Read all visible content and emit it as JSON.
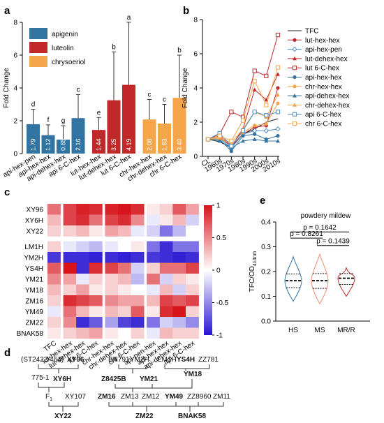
{
  "panel_labels": {
    "a": "a",
    "b": "b",
    "c": "c",
    "d": "d",
    "e": "e"
  },
  "chart_data": [
    {
      "panel": "a",
      "type": "bar",
      "ylabel": "Fold Change",
      "ylim": [
        0,
        8
      ],
      "yticks": [
        "0",
        "2",
        "4",
        "6",
        "8"
      ],
      "legend": {
        "position": "top-left",
        "entries": [
          {
            "name": "apigenin",
            "color": "#3274A1"
          },
          {
            "name": "luteolin",
            "color": "#C0282A"
          },
          {
            "name": "chrysoeriol",
            "color": "#F5A54A"
          }
        ]
      },
      "categories": [
        "api-hex-pen",
        "api-hex-hex",
        "api-dehex-hex",
        "api 6-C-hex",
        "lut-hex-hex",
        "lut-dehex-hex",
        "lut 6-C-hex",
        "chr-hex-hex",
        "chr-dehex-hex",
        "chr 6-C-hex"
      ],
      "values": [
        1.79,
        1.12,
        0.85,
        2.16,
        1.44,
        3.25,
        4.19,
        2.08,
        1.83,
        3.4
      ],
      "value_labels": [
        "1.79",
        "1.12",
        "0.85",
        "2.16",
        "1.44",
        "3.25",
        "4.19",
        "2.08",
        "1.83",
        "3.40"
      ],
      "error_upper": [
        2.7,
        1.75,
        1.7,
        3.6,
        2.2,
        6.2,
        8.0,
        3.3,
        3.0,
        6.0
      ],
      "letters": [
        "d",
        "f",
        "g",
        "c",
        "e",
        "b",
        "a",
        "c",
        "c",
        "b"
      ],
      "groups": [
        "apigenin",
        "apigenin",
        "apigenin",
        "apigenin",
        "luteolin",
        "luteolin",
        "luteolin",
        "chrysoeriol",
        "chrysoeriol",
        "chrysoeriol"
      ]
    },
    {
      "panel": "b",
      "type": "line",
      "ylabel": "Fold Change",
      "ylim": [
        0,
        8
      ],
      "yticks": [
        "0",
        "2",
        "4",
        "6",
        "8"
      ],
      "categories": [
        "CL",
        "1960s",
        "1970s",
        "1980s",
        "1990s",
        "2000s",
        "2010s"
      ],
      "series": [
        {
          "name": "TFC",
          "color": "#222222",
          "marker": "none",
          "values": [
            1.0,
            0.85,
            0.5,
            1.3,
            1.6,
            2.0,
            2.2
          ]
        },
        {
          "name": "lut-hex-hex",
          "color": "#C0282A",
          "marker": "circle",
          "values": [
            1.0,
            1.1,
            0.6,
            1.3,
            1.7,
            1.8,
            4.0
          ]
        },
        {
          "name": "api-hex-pen",
          "color": "#4A8CC4",
          "marker": "open-diamond",
          "values": [
            1.0,
            1.05,
            0.5,
            1.3,
            1.5,
            1.5,
            1.6
          ]
        },
        {
          "name": "lut-dehex-hex",
          "color": "#C0282A",
          "marker": "triangle",
          "values": [
            1.0,
            1.2,
            0.6,
            1.6,
            3.9,
            3.3,
            4.8
          ]
        },
        {
          "name": "lut 6-C-hex",
          "color": "#C0282A",
          "marker": "open-square",
          "values": [
            1.0,
            1.3,
            2.6,
            2.3,
            5.0,
            4.7,
            7.1
          ]
        },
        {
          "name": "api-hex-hex",
          "color": "#3274A1",
          "marker": "circle",
          "values": [
            1.0,
            1.0,
            0.3,
            1.2,
            1.3,
            1.0,
            1.2
          ]
        },
        {
          "name": "chr-hex-hex",
          "color": "#F5A54A",
          "marker": "circle",
          "values": [
            1.0,
            1.05,
            0.7,
            1.4,
            1.8,
            1.9,
            3.1
          ]
        },
        {
          "name": "api-dehex-hex",
          "color": "#3274A1",
          "marker": "triangle",
          "values": [
            1.0,
            0.9,
            0.5,
            0.9,
            1.0,
            0.9,
            0.9
          ]
        },
        {
          "name": "chr-dehex-hex",
          "color": "#F5A54A",
          "marker": "triangle",
          "values": [
            1.0,
            1.1,
            0.8,
            1.6,
            2.6,
            2.3,
            3.6
          ]
        },
        {
          "name": "api 6-C-hex",
          "color": "#4A8CC4",
          "marker": "open-square",
          "values": [
            1.0,
            1.35,
            0.6,
            1.5,
            2.6,
            2.4,
            2.6
          ]
        },
        {
          "name": "chr 6-C-hex",
          "color": "#F5A54A",
          "marker": "open-square",
          "values": [
            1.0,
            1.2,
            0.9,
            2.1,
            4.4,
            3.0,
            5.2
          ]
        }
      ]
    },
    {
      "panel": "c",
      "type": "heatmap",
      "rows": [
        "XY96",
        "XY6H",
        "XY22",
        "LM1H",
        "YM2H",
        "YS4H",
        "YM21",
        "YM18",
        "ZM16",
        "YM49",
        "ZM22",
        "BNAK58"
      ],
      "columns": [
        "TFC",
        "lut-hex-hex",
        "lut-dehex-hex",
        "lut 6-C-hex",
        "chr-hex-hex",
        "chr-dehex-hex",
        "chr 6-C-hex",
        "api-pen-hex",
        "api-hex-hex",
        "api-dehex-hex",
        "api 6-C-hex"
      ],
      "color_range": [
        -1,
        1
      ],
      "colorbar_ticks": [
        "1",
        "0.5",
        "0",
        "-0.5",
        "-1"
      ],
      "values": [
        [
          0.6,
          0.8,
          0.95,
          0.9,
          0.95,
          1.0,
          0.9,
          0.1,
          0.2,
          0.7,
          0.4
        ],
        [
          0.3,
          0.8,
          0.9,
          0.6,
          0.8,
          0.9,
          0.5,
          -0.1,
          0.1,
          0.3,
          -0.2
        ],
        [
          0.2,
          0.2,
          0.3,
          0.1,
          0.4,
          0.3,
          -0.1,
          -0.2,
          -0.6,
          -0.3,
          0.0
        ],
        [
          0.2,
          -0.1,
          -0.2,
          -0.3,
          -0.1,
          0.0,
          0.1,
          -0.6,
          -0.9,
          -0.6,
          -0.6
        ],
        [
          -0.85,
          -0.9,
          -0.9,
          -0.95,
          -0.9,
          -0.95,
          -0.9,
          -0.85,
          -0.9,
          -0.95,
          -0.9
        ],
        [
          0.7,
          1.0,
          -0.9,
          0.9,
          0.8,
          0.6,
          -0.2,
          0.2,
          0.6,
          0.6,
          0.8
        ],
        [
          0.5,
          0.4,
          -0.1,
          0.2,
          0.2,
          0.3,
          -0.3,
          0.6,
          -0.2,
          0.2,
          0.1
        ],
        [
          0.3,
          0.2,
          0.4,
          0.1,
          0.2,
          0.1,
          0.0,
          -0.1,
          0.3,
          -0.2,
          0.2
        ],
        [
          0.2,
          0.9,
          0.8,
          0.7,
          0.5,
          0.4,
          0.4,
          0.3,
          0.8,
          0.7,
          0.8
        ],
        [
          -0.1,
          0.6,
          0.3,
          0.1,
          0.3,
          0.2,
          0.7,
          0.1,
          0.9,
          1.0,
          0.2
        ],
        [
          0.2,
          0.5,
          -0.9,
          -0.7,
          -0.4,
          -0.8,
          -0.9,
          -0.6,
          -0.2,
          -0.3,
          -0.5
        ],
        [
          0.1,
          0.2,
          0.3,
          0.4,
          0.1,
          0.0,
          0.2,
          -0.1,
          0.3,
          0.2,
          0.2
        ]
      ],
      "row_groups": [
        [
          0,
          2
        ],
        [
          3,
          11
        ]
      ],
      "col_groups": [
        [
          0,
          0
        ],
        [
          1,
          3
        ],
        [
          4,
          6
        ],
        [
          7,
          10
        ]
      ]
    },
    {
      "panel": "e",
      "type": "violin",
      "title": "powdery mildew",
      "ylabel": "TFC/OD",
      "ylabel_sub": "414nm",
      "ylim": [
        0,
        0.4
      ],
      "yticks": [
        "0.0",
        "0.1",
        "0.2",
        "0.3",
        "0.4"
      ],
      "categories": [
        "HS",
        "MS",
        "MR/R"
      ],
      "colors": [
        "#3274A1",
        "#F08C6E",
        "#C0282A"
      ],
      "medians": [
        0.163,
        0.163,
        0.173
      ],
      "quartiles": [
        [
          0.135,
          0.19
        ],
        [
          0.132,
          0.192
        ],
        [
          0.148,
          0.192
        ]
      ],
      "ranges": [
        [
          0.08,
          0.26
        ],
        [
          0.07,
          0.27
        ],
        [
          0.1,
          0.215
        ]
      ],
      "comparisons": [
        {
          "pair": [
            "HS",
            "MR/R"
          ],
          "label": "p = 0.1642"
        },
        {
          "pair": [
            "HS",
            "MS"
          ],
          "label": "p = 0.8261"
        },
        {
          "pair": [
            "MS",
            "MR/R"
          ],
          "label": "p = 0.1439"
        }
      ]
    }
  ],
  "pedigree": {
    "panel": "d",
    "labels": {
      "st2422": "(ST2422/464)",
      "xy96": "XY96",
      "n7751": "775-1",
      "xy6h": "XY6H",
      "f1": "F",
      "f1sub": "1",
      "xy107": "XY107",
      "xy22": "XY22",
      "bn791": "BN791",
      "ym2h": "YM2H",
      "lm1h": "LM1H",
      "ys4h": "YS4H",
      "zz781": "ZZ781",
      "z8425b": "Z8425B",
      "ym21": "YM21",
      "ym18": "YM18",
      "zm16": "ZM16",
      "zm13": "ZM13",
      "zm12": "ZM12",
      "ym49": "YM49",
      "zz8960": "ZZ8960",
      "zm11": "ZM11",
      "zm22": "ZM22",
      "bnak58": "BNAK58"
    }
  }
}
